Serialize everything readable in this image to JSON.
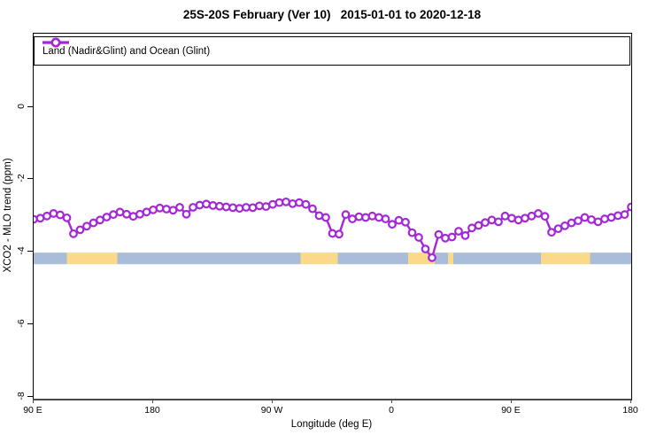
{
  "title": "25S-20S February (Ver 10)   2015-01-01 to 2020-12-18",
  "legend": {
    "label": "Land (Nadir&Glint) and Ocean (Glint)"
  },
  "colors": {
    "series": "#A428D6",
    "ocean_band": "#A9BDDA",
    "land_band": "#FBD98A",
    "axis": "#4a4a4a",
    "text": "#000000"
  },
  "chart_data": {
    "type": "line",
    "title": "25S-20S February (Ver 10)   2015-01-01 to 2020-12-18",
    "xlabel": "Longitude (deg E)",
    "ylabel": "XCO2 - MLO trend (ppm)",
    "xlim": [
      90,
      540
    ],
    "ylim": [
      -8.05,
      2.02
    ],
    "grid": false,
    "legend_position": "top-inside-full-width",
    "x_ticks": [
      {
        "value": 90,
        "label": "90 E"
      },
      {
        "value": 180,
        "label": "180"
      },
      {
        "value": 270,
        "label": "90 W"
      },
      {
        "value": 360,
        "label": "0"
      },
      {
        "value": 450,
        "label": "90 E"
      },
      {
        "value": 540,
        "label": "180"
      }
    ],
    "y_ticks": [
      {
        "value": 0,
        "label": "0"
      },
      {
        "value": -2,
        "label": "-2"
      },
      {
        "value": -4,
        "label": "-4"
      },
      {
        "value": -6,
        "label": "-6"
      },
      {
        "value": -8,
        "label": "-8"
      }
    ],
    "series": [
      {
        "name": "Land (Nadir&Glint) and Ocean (Glint)",
        "marker": "open-circle",
        "color": "#A428D6",
        "x": [
          90,
          95,
          100,
          105,
          110,
          115,
          120,
          125,
          130,
          135,
          140,
          145,
          150,
          155,
          160,
          165,
          170,
          175,
          180,
          185,
          190,
          195,
          200,
          205,
          210,
          215,
          220,
          225,
          230,
          235,
          240,
          245,
          250,
          255,
          260,
          265,
          270,
          275,
          280,
          285,
          290,
          295,
          300,
          305,
          310,
          315,
          320,
          325,
          330,
          335,
          340,
          345,
          350,
          355,
          360,
          365,
          370,
          375,
          380,
          385,
          390,
          395,
          400,
          405,
          410,
          415,
          420,
          425,
          430,
          435,
          440,
          445,
          450,
          455,
          460,
          465,
          470,
          475,
          480,
          485,
          490,
          495,
          500,
          505,
          510,
          515,
          520,
          525,
          530,
          535,
          540
        ],
        "y": [
          -3.1,
          -3.07,
          -3.01,
          -2.94,
          -2.98,
          -3.06,
          -3.5,
          -3.39,
          -3.29,
          -3.2,
          -3.12,
          -3.04,
          -2.97,
          -2.9,
          -2.96,
          -3.02,
          -2.96,
          -2.9,
          -2.84,
          -2.79,
          -2.82,
          -2.85,
          -2.77,
          -2.96,
          -2.77,
          -2.71,
          -2.68,
          -2.72,
          -2.74,
          -2.76,
          -2.78,
          -2.8,
          -2.77,
          -2.78,
          -2.73,
          -2.75,
          -2.69,
          -2.64,
          -2.62,
          -2.67,
          -2.64,
          -2.69,
          -2.81,
          -3.0,
          -3.05,
          -3.49,
          -3.51,
          -2.97,
          -3.09,
          -3.03,
          -3.05,
          -3.01,
          -3.05,
          -3.09,
          -3.24,
          -3.13,
          -3.18,
          -3.47,
          -3.6,
          -3.92,
          -4.16,
          -3.52,
          -3.62,
          -3.59,
          -3.43,
          -3.55,
          -3.34,
          -3.27,
          -3.19,
          -3.12,
          -3.17,
          -3.01,
          -3.07,
          -3.12,
          -3.07,
          -3.01,
          -2.94,
          -3.02,
          -3.46,
          -3.36,
          -3.28,
          -3.2,
          -3.14,
          -3.05,
          -3.11,
          -3.17,
          -3.09,
          -3.05,
          -3.0,
          -2.97,
          -2.76
        ]
      }
    ],
    "surface_band": {
      "y_top": -4.02,
      "y_bottom": -4.34,
      "segments": [
        {
          "type": "ocean",
          "from": 90,
          "to": 115
        },
        {
          "type": "land",
          "from": 115,
          "to": 153
        },
        {
          "type": "ocean",
          "from": 153,
          "to": 291
        },
        {
          "type": "land",
          "from": 291,
          "to": 319
        },
        {
          "type": "ocean",
          "from": 319,
          "to": 372
        },
        {
          "type": "land",
          "from": 372,
          "to": 392
        },
        {
          "type": "ocean",
          "from": 392,
          "to": 402
        },
        {
          "type": "land",
          "from": 402,
          "to": 406
        },
        {
          "type": "ocean",
          "from": 406,
          "to": 472
        },
        {
          "type": "land",
          "from": 472,
          "to": 509
        },
        {
          "type": "ocean",
          "from": 509,
          "to": 540
        }
      ]
    }
  },
  "x_axis": {
    "label": "Longitude (deg E)"
  },
  "y_axis": {
    "label": "XCO2 - MLO trend (ppm)"
  }
}
